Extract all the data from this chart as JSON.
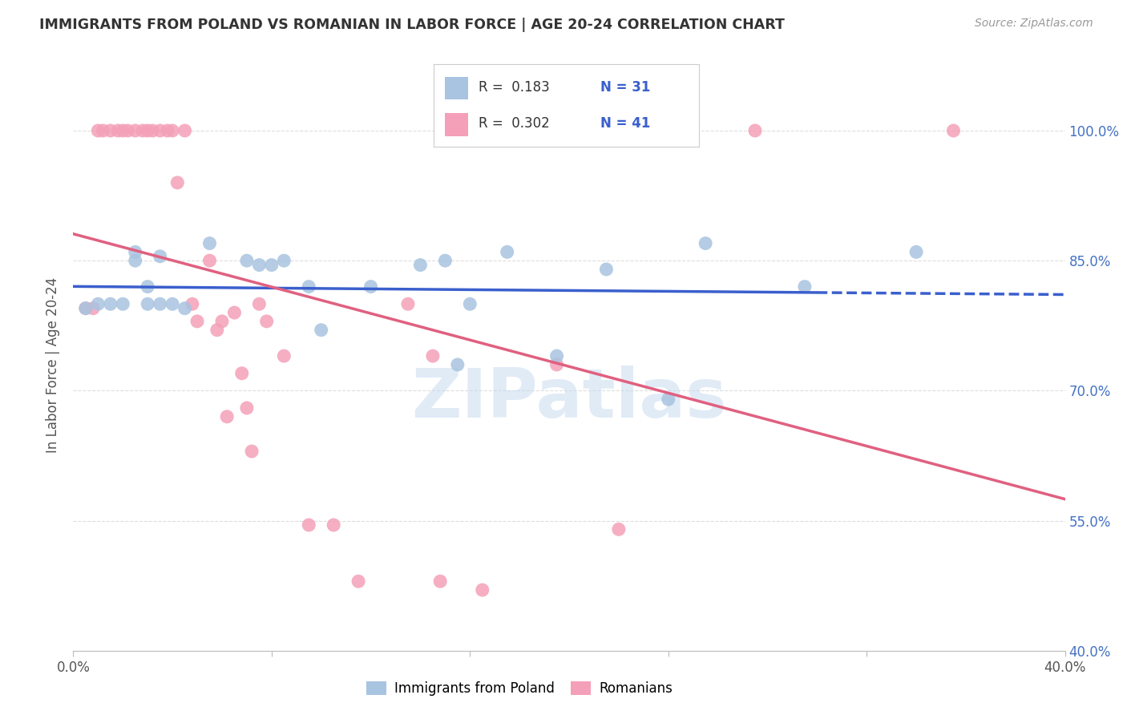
{
  "title": "IMMIGRANTS FROM POLAND VS ROMANIAN IN LABOR FORCE | AGE 20-24 CORRELATION CHART",
  "source": "Source: ZipAtlas.com",
  "ylabel": "In Labor Force | Age 20-24",
  "xlim": [
    0.0,
    0.4
  ],
  "ylim": [
    0.4,
    1.06
  ],
  "poland_color": "#a8c4e0",
  "romanian_color": "#f4a0b8",
  "poland_line_color": "#3a5fcd",
  "romanian_line_color": "#e06080",
  "right_tick_color": "#4472c4",
  "legend_poland_r": "R =  0.183",
  "legend_poland_n": "N = 31",
  "legend_romanian_r": "R =  0.302",
  "legend_romanian_n": "N = 41",
  "poland_x": [
    0.005,
    0.01,
    0.015,
    0.02,
    0.025,
    0.025,
    0.03,
    0.03,
    0.035,
    0.035,
    0.04,
    0.045,
    0.055,
    0.07,
    0.075,
    0.08,
    0.085,
    0.095,
    0.1,
    0.12,
    0.14,
    0.15,
    0.155,
    0.16,
    0.175,
    0.195,
    0.215,
    0.24,
    0.255,
    0.295,
    0.34
  ],
  "poland_y": [
    0.795,
    0.8,
    0.8,
    0.8,
    0.85,
    0.86,
    0.8,
    0.82,
    0.855,
    0.8,
    0.8,
    0.795,
    0.87,
    0.85,
    0.845,
    0.845,
    0.85,
    0.82,
    0.77,
    0.82,
    0.845,
    0.85,
    0.73,
    0.8,
    0.86,
    0.74,
    0.84,
    0.69,
    0.87,
    0.82,
    0.86
  ],
  "romanian_x": [
    0.005,
    0.008,
    0.01,
    0.012,
    0.015,
    0.018,
    0.02,
    0.022,
    0.025,
    0.028,
    0.03,
    0.032,
    0.035,
    0.038,
    0.04,
    0.042,
    0.045,
    0.048,
    0.05,
    0.055,
    0.058,
    0.06,
    0.062,
    0.065,
    0.068,
    0.07,
    0.072,
    0.075,
    0.078,
    0.085,
    0.095,
    0.105,
    0.115,
    0.135,
    0.145,
    0.148,
    0.165,
    0.195,
    0.22,
    0.275,
    0.355
  ],
  "romanian_y": [
    0.795,
    0.795,
    1.0,
    1.0,
    1.0,
    1.0,
    1.0,
    1.0,
    1.0,
    1.0,
    1.0,
    1.0,
    1.0,
    1.0,
    1.0,
    0.94,
    1.0,
    0.8,
    0.78,
    0.85,
    0.77,
    0.78,
    0.67,
    0.79,
    0.72,
    0.68,
    0.63,
    0.8,
    0.78,
    0.74,
    0.545,
    0.545,
    0.48,
    0.8,
    0.74,
    0.48,
    0.47,
    0.73,
    0.54,
    1.0,
    1.0
  ],
  "yticks": [
    0.4,
    0.55,
    0.7,
    0.85,
    1.0
  ],
  "ytick_labels_right": [
    "40.0%",
    "55.0%",
    "70.0%",
    "85.0%",
    "100.0%"
  ],
  "xticks": [
    0.0,
    0.08,
    0.16,
    0.24,
    0.32,
    0.4
  ],
  "xtick_labels": [
    "0.0%",
    "",
    "",
    "",
    "",
    "40.0%"
  ],
  "background_color": "#ffffff",
  "grid_color": "#dddddd",
  "watermark_color": "#c8dcf0"
}
